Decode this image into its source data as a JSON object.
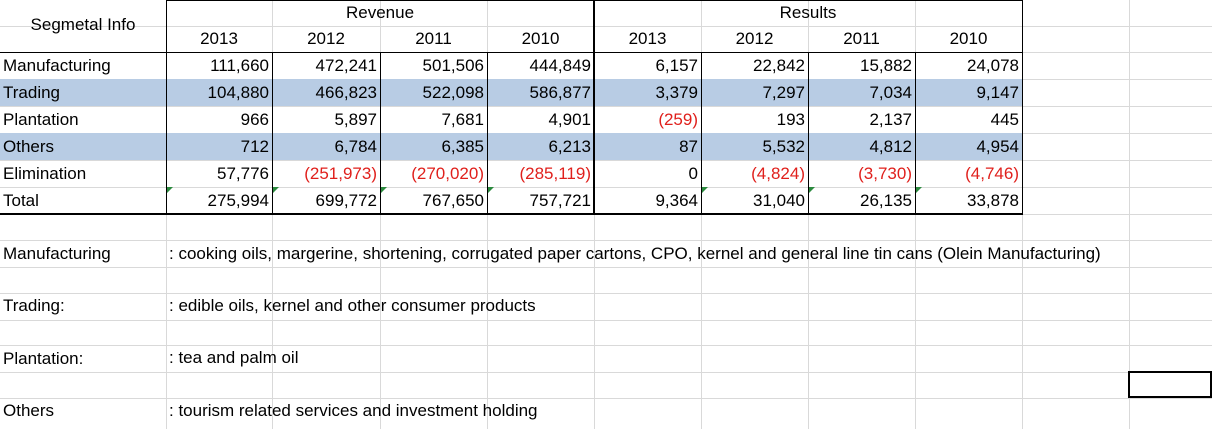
{
  "table": {
    "corner_label": "Segmetal Info",
    "group_headers": [
      "Revenue",
      "Results"
    ],
    "years": [
      "2013",
      "2012",
      "2011",
      "2010",
      "2013",
      "2012",
      "2011",
      "2010"
    ],
    "rows": [
      {
        "label": "Manufacturing",
        "values": [
          "111,660",
          "472,241",
          "501,506",
          "444,849",
          "6,157",
          "22,842",
          "15,882",
          "24,078"
        ],
        "highlighted": false
      },
      {
        "label": "Trading",
        "values": [
          "104,880",
          "466,823",
          "522,098",
          "586,877",
          "3,379",
          "7,297",
          "7,034",
          "9,147"
        ],
        "highlighted": true
      },
      {
        "label": "Plantation",
        "values": [
          "966",
          "5,897",
          "7,681",
          "4,901",
          "(259)",
          "193",
          "2,137",
          "445"
        ],
        "highlighted": false
      },
      {
        "label": "Others",
        "values": [
          "712",
          "6,784",
          "6,385",
          "6,213",
          "87",
          "5,532",
          "4,812",
          "4,954"
        ],
        "highlighted": true
      },
      {
        "label": "Elimination",
        "values": [
          "57,776",
          "(251,973)",
          "(270,020)",
          "(285,119)",
          "0",
          "(4,824)",
          "(3,730)",
          "(4,746)"
        ],
        "highlighted": false
      },
      {
        "label": "Total",
        "values": [
          "275,994",
          "699,772",
          "767,650",
          "757,721",
          "9,364",
          "31,040",
          "26,135",
          "33,878"
        ],
        "highlighted": false
      }
    ]
  },
  "notes": [
    {
      "label": "Manufacturing",
      "text": ": cooking oils, margerine, shortening, corrugated paper cartons, CPO, kernel and general line tin cans (Olein Manufacturing)"
    },
    {
      "label": "Trading:",
      "text": ": edible oils, kernel and other consumer products"
    },
    {
      "label": "Plantation:",
      "text": ": tea and palm oil"
    },
    {
      "label": "Others",
      "text": ": tourism related services and investment holding"
    }
  ],
  "colors": {
    "highlight_row": "#b8cce4",
    "negative_text": "#e0201c",
    "gridline": "#d9d9d9",
    "error_marker": "#2b8a3e"
  }
}
